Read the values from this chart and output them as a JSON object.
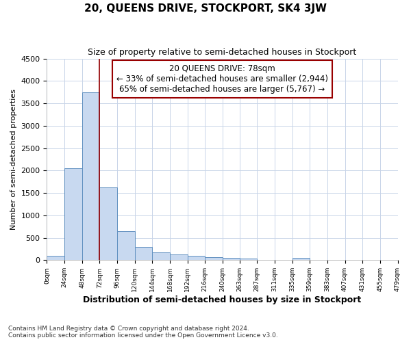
{
  "title": "20, QUEENS DRIVE, STOCKPORT, SK4 3JW",
  "subtitle": "Size of property relative to semi-detached houses in Stockport",
  "xlabel": "Distribution of semi-detached houses by size in Stockport",
  "ylabel": "Number of semi-detached properties",
  "footnote": "Contains HM Land Registry data © Crown copyright and database right 2024.\nContains public sector information licensed under the Open Government Licence v3.0.",
  "property_label": "20 QUEENS DRIVE: 78sqm",
  "annotation_line1": "← 33% of semi-detached houses are smaller (2,944)",
  "annotation_line2": "65% of semi-detached houses are larger (5,767) →",
  "property_size": 78,
  "bin_edges": [
    0,
    24,
    48,
    72,
    96,
    120,
    144,
    168,
    192,
    216,
    240,
    263,
    287,
    311,
    335,
    359,
    383,
    407,
    431,
    455,
    479
  ],
  "bin_labels": [
    "0sqm",
    "24sqm",
    "48sqm",
    "72sqm",
    "96sqm",
    "120sqm",
    "144sqm",
    "168sqm",
    "192sqm",
    "216sqm",
    "240sqm",
    "263sqm",
    "287sqm",
    "311sqm",
    "335sqm",
    "359sqm",
    "383sqm",
    "407sqm",
    "431sqm",
    "455sqm",
    "479sqm"
  ],
  "values": [
    100,
    2050,
    3750,
    1620,
    640,
    290,
    175,
    130,
    95,
    60,
    45,
    30,
    0,
    0,
    50,
    0,
    0,
    0,
    0,
    0
  ],
  "bar_color": "#c8d9f0",
  "bar_edge_color": "#6090c0",
  "vline_color": "#990000",
  "box_edge_color": "#990000",
  "bg_color": "#ffffff",
  "grid_color": "#c8d4e8",
  "ylim": [
    0,
    4500
  ],
  "yticks": [
    0,
    500,
    1000,
    1500,
    2000,
    2500,
    3000,
    3500,
    4000,
    4500
  ]
}
